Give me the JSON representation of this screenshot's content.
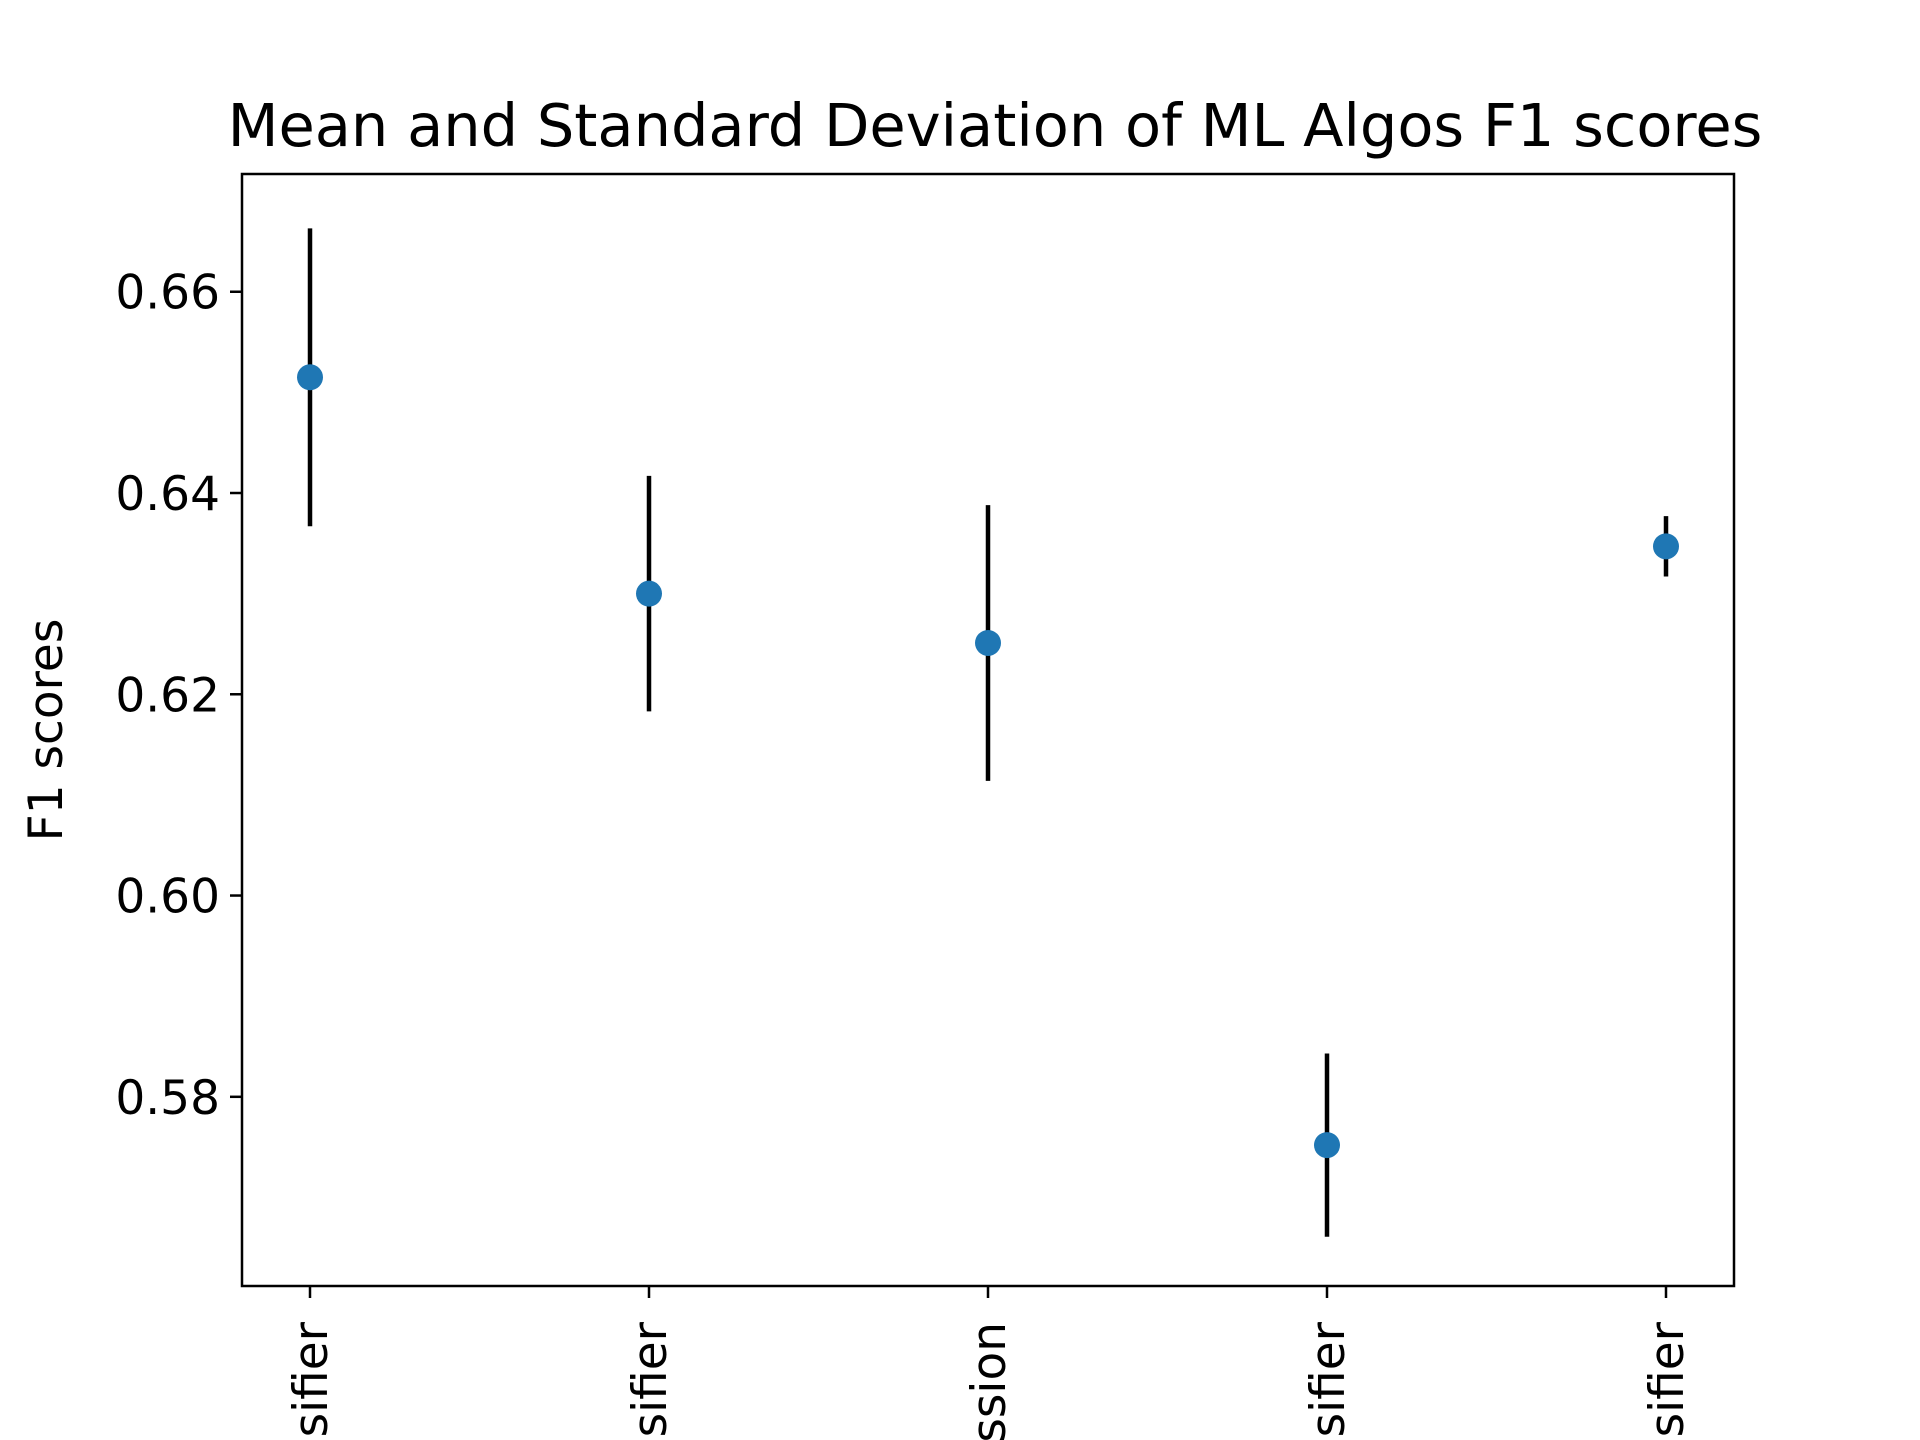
{
  "chart_data": {
    "type": "scatter",
    "title": "Mean and Standard Deviation of ML Algos F1 scores",
    "xlabel": "",
    "ylabel": "F1 scores",
    "categories": [
      "sifier",
      "sifier",
      "ssion",
      "sifier",
      "sifier"
    ],
    "series": [
      {
        "values": [
          0.6515,
          0.63,
          0.6251,
          0.5752,
          0.6347
        ],
        "std": [
          0.0148,
          0.0117,
          0.0137,
          0.0091,
          0.003
        ]
      }
    ],
    "y_ticks": [
      0.58,
      0.6,
      0.62,
      0.64,
      0.66
    ],
    "y_tick_labels": [
      "0.58",
      "0.60",
      "0.62",
      "0.64",
      "0.66"
    ],
    "ylim": [
      0.5612,
      0.6717
    ],
    "grid": false,
    "legend": "none",
    "colors": {
      "marker": "#1f77b4",
      "errorbar": "#000000",
      "axes": "#000000"
    }
  }
}
